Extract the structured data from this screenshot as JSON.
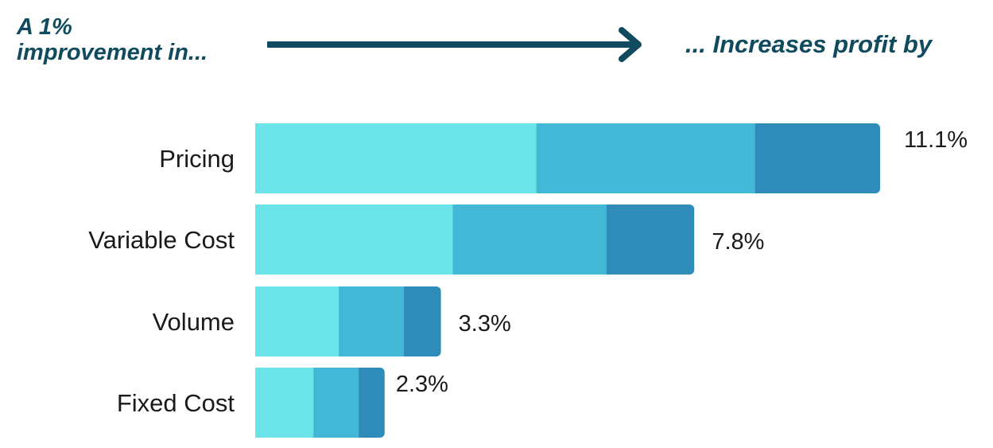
{
  "header": {
    "left_line1": "A 1%",
    "left_line2": "improvement in...",
    "right": "... Increases profit by"
  },
  "colors": {
    "heading": "#0f4a5e",
    "segment_light": "#6ae4e8",
    "segment_mid": "#42b7d6",
    "segment_dark": "#2e8bba"
  },
  "chart_data": {
    "type": "bar",
    "orientation": "horizontal",
    "categories": [
      "Pricing",
      "Variable Cost",
      "Volume",
      "Fixed Cost"
    ],
    "values": [
      11.1,
      7.8,
      3.3,
      2.3
    ],
    "value_labels": [
      "11.1%",
      "7.8%",
      "3.3%",
      "2.3%"
    ],
    "segment_fractions": [
      0.45,
      0.35,
      0.2
    ],
    "title": "",
    "xlabel": "",
    "ylabel": "",
    "xlim": [
      0,
      11.1
    ],
    "grid": false,
    "legend": "none"
  }
}
